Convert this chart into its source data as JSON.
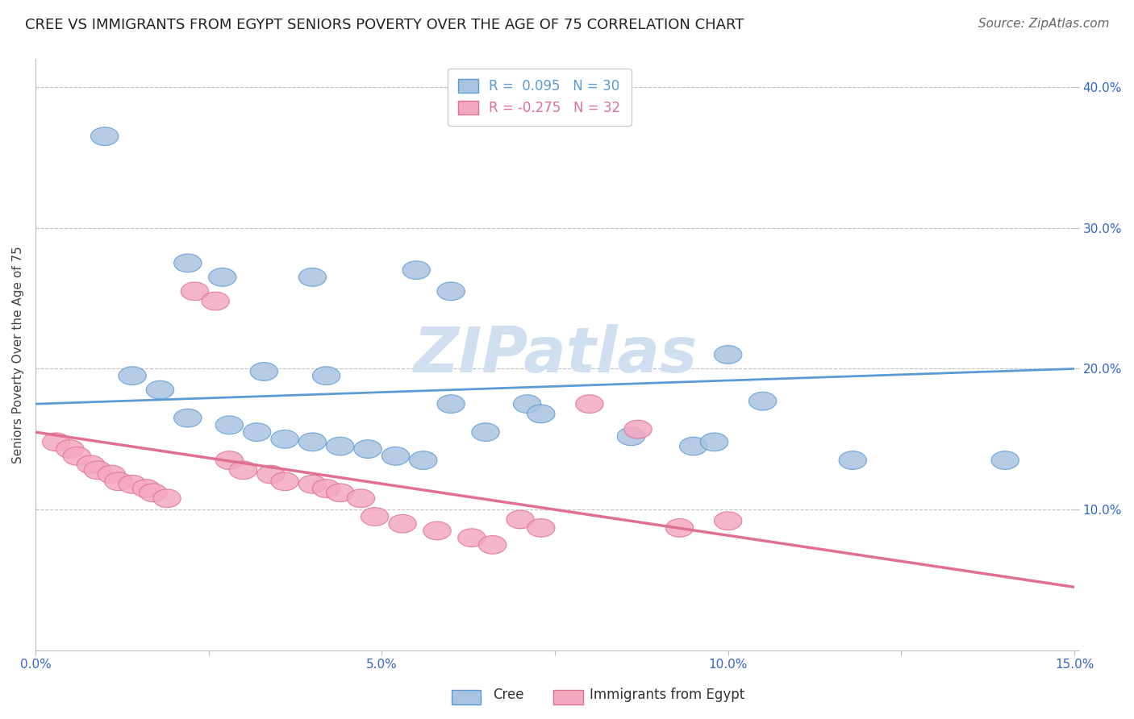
{
  "title": "CREE VS IMMIGRANTS FROM EGYPT SENIORS POVERTY OVER THE AGE OF 75 CORRELATION CHART",
  "source": "Source: ZipAtlas.com",
  "ylabel": "Seniors Poverty Over the Age of 75",
  "xlim": [
    0.0,
    0.15
  ],
  "ylim": [
    0.0,
    0.42
  ],
  "xticks": [
    0.0,
    0.025,
    0.05,
    0.075,
    0.1,
    0.125,
    0.15
  ],
  "xticklabels": [
    "0.0%",
    "",
    "5.0%",
    "",
    "10.0%",
    "",
    "15.0%"
  ],
  "yticks": [
    0.0,
    0.1,
    0.2,
    0.3,
    0.4
  ],
  "yticklabels": [
    "",
    "10.0%",
    "20.0%",
    "30.0%",
    "40.0%"
  ],
  "grid_yticks": [
    0.1,
    0.2,
    0.3,
    0.4
  ],
  "cree_color": "#a8c4e0",
  "egypt_color": "#f4a8c0",
  "cree_line_color": "#5b9bd5",
  "egypt_line_color": "#e07090",
  "cree_R": 0.095,
  "cree_N": 30,
  "egypt_R": -0.275,
  "egypt_N": 32,
  "cree_points": [
    [
      0.01,
      0.365
    ],
    [
      0.022,
      0.275
    ],
    [
      0.027,
      0.265
    ],
    [
      0.033,
      0.198
    ],
    [
      0.04,
      0.265
    ],
    [
      0.042,
      0.195
    ],
    [
      0.055,
      0.27
    ],
    [
      0.06,
      0.255
    ],
    [
      0.014,
      0.195
    ],
    [
      0.018,
      0.185
    ],
    [
      0.022,
      0.165
    ],
    [
      0.028,
      0.16
    ],
    [
      0.032,
      0.155
    ],
    [
      0.036,
      0.15
    ],
    [
      0.04,
      0.148
    ],
    [
      0.044,
      0.145
    ],
    [
      0.048,
      0.143
    ],
    [
      0.052,
      0.138
    ],
    [
      0.056,
      0.135
    ],
    [
      0.06,
      0.175
    ],
    [
      0.065,
      0.155
    ],
    [
      0.071,
      0.175
    ],
    [
      0.073,
      0.168
    ],
    [
      0.086,
      0.152
    ],
    [
      0.095,
      0.145
    ],
    [
      0.098,
      0.148
    ],
    [
      0.1,
      0.21
    ],
    [
      0.105,
      0.177
    ],
    [
      0.118,
      0.135
    ],
    [
      0.14,
      0.135
    ]
  ],
  "egypt_points": [
    [
      0.003,
      0.148
    ],
    [
      0.005,
      0.143
    ],
    [
      0.006,
      0.138
    ],
    [
      0.008,
      0.132
    ],
    [
      0.009,
      0.128
    ],
    [
      0.011,
      0.125
    ],
    [
      0.012,
      0.12
    ],
    [
      0.014,
      0.118
    ],
    [
      0.016,
      0.115
    ],
    [
      0.017,
      0.112
    ],
    [
      0.019,
      0.108
    ],
    [
      0.023,
      0.255
    ],
    [
      0.026,
      0.248
    ],
    [
      0.028,
      0.135
    ],
    [
      0.03,
      0.128
    ],
    [
      0.034,
      0.125
    ],
    [
      0.036,
      0.12
    ],
    [
      0.04,
      0.118
    ],
    [
      0.042,
      0.115
    ],
    [
      0.044,
      0.112
    ],
    [
      0.047,
      0.108
    ],
    [
      0.049,
      0.095
    ],
    [
      0.053,
      0.09
    ],
    [
      0.058,
      0.085
    ],
    [
      0.063,
      0.08
    ],
    [
      0.066,
      0.075
    ],
    [
      0.07,
      0.093
    ],
    [
      0.073,
      0.087
    ],
    [
      0.08,
      0.175
    ],
    [
      0.087,
      0.157
    ],
    [
      0.093,
      0.087
    ],
    [
      0.1,
      0.092
    ]
  ],
  "cree_trend_x": [
    0.0,
    0.15
  ],
  "cree_trend_y": [
    0.175,
    0.2
  ],
  "egypt_trend_x": [
    0.0,
    0.15
  ],
  "egypt_trend_y": [
    0.155,
    0.045
  ],
  "watermark_text": "ZIPatlas",
  "watermark_color": "#d0dff0",
  "background_color": "#ffffff",
  "title_fontsize": 13,
  "label_fontsize": 11,
  "tick_fontsize": 11,
  "legend_fontsize": 12,
  "source_fontsize": 11
}
